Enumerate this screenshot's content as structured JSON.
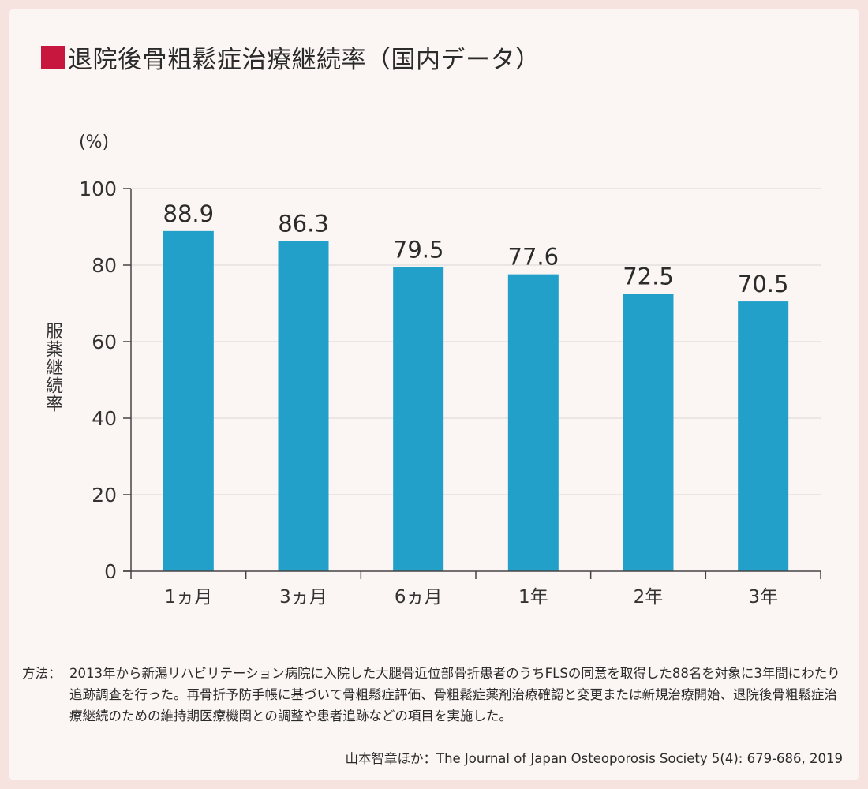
{
  "title": "退院後骨粗鬆症治療継続率（国内データ）",
  "colors": {
    "accent": "#c8173f",
    "bar": "#23a0c9",
    "background": "#f6e3df",
    "panel": "#fbf6f3"
  },
  "chart_data": {
    "type": "bar",
    "title": "退院後骨粗鬆症治療継続率（国内データ）",
    "unit_label": "(%)",
    "ylabel": "服薬継続率",
    "xlabel": "",
    "categories": [
      "1ヵ月",
      "3ヵ月",
      "6ヵ月",
      "1年",
      "2年",
      "3年"
    ],
    "values": [
      88.9,
      86.3,
      79.5,
      77.6,
      72.5,
      70.5
    ],
    "value_labels": [
      "88.9",
      "86.3",
      "79.5",
      "77.6",
      "72.5",
      "70.5"
    ],
    "ylim": [
      0,
      100
    ],
    "yticks": [
      0,
      20,
      40,
      60,
      80,
      100
    ],
    "grid": true
  },
  "notes": {
    "label": "方法：",
    "text": "2013年から新潟リハビリテーション病院に入院した大腿骨近位部骨折患者のうちFLSの同意を取得した88名を対象に3年間にわたり追跡調査を行った。再骨折予防手帳に基づいて骨粗鬆症評価、骨粗鬆症薬剤治療確認と変更または新規治療開始、退院後骨粗鬆症治療継続のための維持期医療機関との調整や患者追跡などの項目を実施した。"
  },
  "source": "山本智章ほか：The Journal of Japan Osteoporosis Society 5(4): 679-686, 2019"
}
